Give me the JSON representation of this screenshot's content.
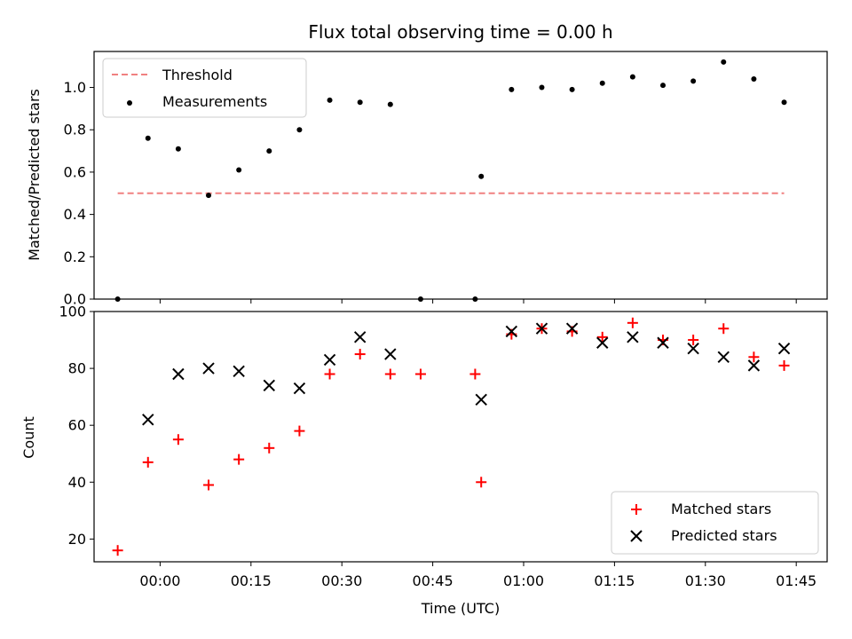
{
  "chart_data": [
    {
      "type": "scatter",
      "title": "Flux total observing time = 0.00 h",
      "ylabel": "Matched/Predicted stars",
      "ylim": [
        0.0,
        1.17
      ],
      "yticks": [
        0.0,
        0.2,
        0.4,
        0.6,
        0.8,
        1.0
      ],
      "ytick_labels": [
        "0.0",
        "0.2",
        "0.4",
        "0.6",
        "0.8",
        "1.0"
      ],
      "legend_position": "top-left",
      "threshold": {
        "name": "Threshold",
        "y": 0.5,
        "x_start": "23:53",
        "x_end": "01:43",
        "color": "#f08080"
      },
      "series": [
        {
          "name": "Measurements",
          "color": "#000000",
          "x": [
            "23:53",
            "23:58",
            "00:03",
            "00:08",
            "00:13",
            "00:18",
            "00:23",
            "00:28",
            "00:33",
            "00:38",
            "00:43",
            "00:52",
            "00:53",
            "00:58",
            "01:03",
            "01:08",
            "01:13",
            "01:18",
            "01:23",
            "01:28",
            "01:33",
            "01:38",
            "01:43"
          ],
          "y": [
            0.0,
            0.76,
            0.71,
            0.49,
            0.61,
            0.7,
            0.8,
            0.94,
            0.93,
            0.92,
            0.0,
            0.0,
            0.58,
            0.99,
            1.0,
            0.99,
            1.02,
            1.05,
            1.01,
            1.03,
            1.12,
            1.04,
            0.93
          ]
        }
      ]
    },
    {
      "type": "scatter",
      "xlabel": "Time (UTC)",
      "ylabel": "Count",
      "ylim": [
        12,
        100
      ],
      "yticks": [
        20,
        40,
        60,
        80,
        100
      ],
      "ytick_labels": [
        "20",
        "40",
        "60",
        "80",
        "100"
      ],
      "xticks": [
        "00:00",
        "00:15",
        "00:30",
        "00:45",
        "01:00",
        "01:15",
        "01:30",
        "01:45"
      ],
      "legend_position": "bottom-right",
      "series": [
        {
          "name": "Matched stars",
          "marker": "plus",
          "color": "#ff0000",
          "x": [
            "23:53",
            "23:58",
            "00:03",
            "00:08",
            "00:13",
            "00:18",
            "00:23",
            "00:28",
            "00:33",
            "00:38",
            "00:43",
            "00:52",
            "00:53",
            "00:58",
            "01:03",
            "01:08",
            "01:13",
            "01:18",
            "01:23",
            "01:28",
            "01:33",
            "01:38",
            "01:43"
          ],
          "y": [
            16,
            47,
            55,
            39,
            48,
            52,
            58,
            78,
            85,
            78,
            78,
            78,
            40,
            92,
            94,
            93,
            91,
            96,
            90,
            90,
            94,
            84,
            81
          ]
        },
        {
          "name": "Predicted stars",
          "marker": "x",
          "color": "#000000",
          "x": [
            "23:58",
            "00:03",
            "00:08",
            "00:13",
            "00:18",
            "00:23",
            "00:28",
            "00:33",
            "00:38",
            "00:53",
            "00:58",
            "01:03",
            "01:08",
            "01:13",
            "01:18",
            "01:23",
            "01:28",
            "01:33",
            "01:38",
            "01:43"
          ],
          "y": [
            62,
            78,
            80,
            79,
            74,
            73,
            83,
            91,
            85,
            69,
            93,
            94,
            94,
            89,
            91,
            89,
            87,
            84,
            81,
            87
          ]
        }
      ]
    }
  ]
}
